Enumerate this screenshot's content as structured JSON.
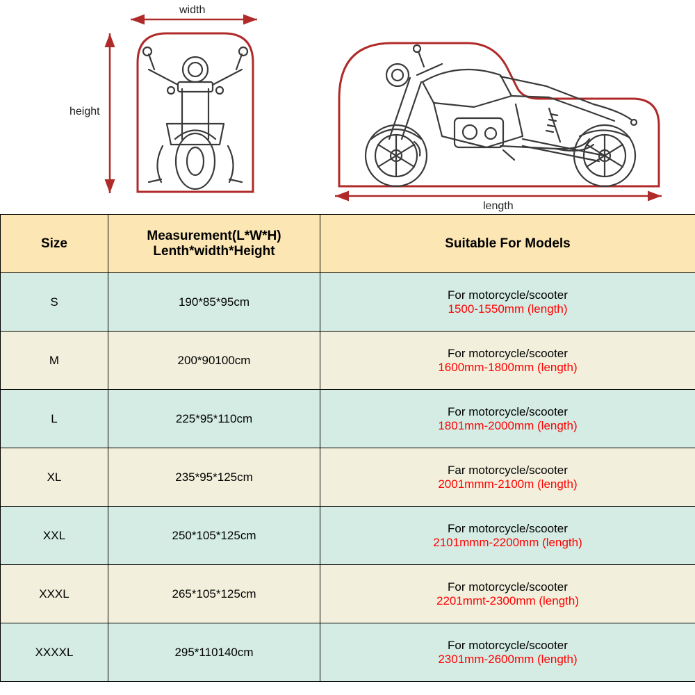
{
  "diagram": {
    "width_label": "width",
    "height_label": "height",
    "length_label": "length",
    "cover_stroke": "#b02a2a",
    "moto_stroke": "#3a3a3a",
    "arrow_stroke": "#b02a2a",
    "label_color": "#222222"
  },
  "table": {
    "header_bg": "#fce6b3",
    "row_a_bg": "#d4ece4",
    "row_b_bg": "#f2f0dc",
    "border_color": "#000000",
    "highlight_color": "#ff0000",
    "columns": {
      "size": "Size",
      "measurement_line1": "Measurement(L*W*H)",
      "measurement_line2": "Lenth*width*Height",
      "suitable": "Suitable For Models"
    },
    "rows": [
      {
        "size": "S",
        "measurement": "190*85*95cm",
        "suit1": "For motorcycle/scooter",
        "suit2": "1500-1550mm (length)"
      },
      {
        "size": "M",
        "measurement": "200*90100cm",
        "suit1": "For motorcycle/scooter",
        "suit2": "1600mm-1800mm (length)"
      },
      {
        "size": "L",
        "measurement": "225*95*110cm",
        "suit1": "For motorcycle/scooter",
        "suit2": "1801mm-2000mm (length)"
      },
      {
        "size": "XL",
        "measurement": "235*95*125cm",
        "suit1": "Far motorcycle/scooter",
        "suit2": "2001mmm-2100m (length)"
      },
      {
        "size": "XXL",
        "measurement": "250*105*125cm",
        "suit1": "For motorcycle/scooter",
        "suit2": "2101mmm-2200mm (length)"
      },
      {
        "size": "XXXL",
        "measurement": "265*105*125cm",
        "suit1": "For motorcycle/scooter",
        "suit2": "2201mmt-2300mm (length)"
      },
      {
        "size": "XXXXL",
        "measurement": "295*110140cm",
        "suit1": "For motorcycle/scooter",
        "suit2": "2301mm-2600mm (length)"
      }
    ]
  }
}
